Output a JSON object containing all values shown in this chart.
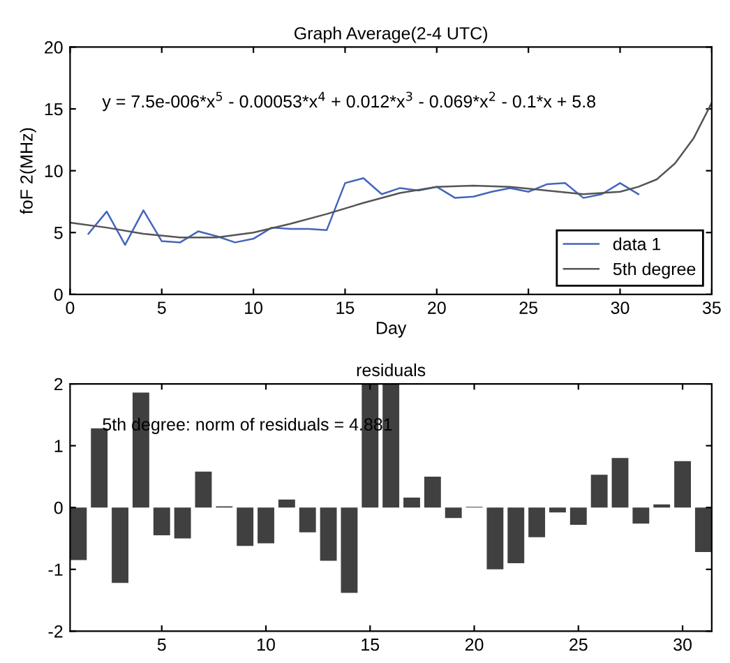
{
  "chart_data": [
    {
      "type": "line",
      "title": "Graph Average(2-4 UTC)",
      "xlabel": "Day",
      "ylabel": "foF 2(MHz)",
      "xlim": [
        0,
        35
      ],
      "ylim": [
        0,
        20
      ],
      "xticks": [
        0,
        5,
        10,
        15,
        20,
        25,
        30,
        35
      ],
      "yticks": [
        0,
        5,
        10,
        15,
        20
      ],
      "legend": "bottom right",
      "grid": false,
      "annotations": [
        "y = 7.5e-006*x$^{5}$ - 0.00053*x$^{4}$ + 0.012*x$^{3}$ - 0.069*x$^{2}$ - 0.1*x + 5.8"
      ],
      "series": [
        {
          "name": "data 1",
          "color": "#4466bb",
          "x": [
            1,
            2,
            3,
            4,
            5,
            6,
            7,
            8,
            9,
            10,
            11,
            12,
            13,
            14,
            15,
            16,
            17,
            18,
            19,
            20,
            21,
            22,
            23,
            24,
            25,
            26,
            27,
            28,
            29,
            30,
            31
          ],
          "values": [
            4.9,
            6.7,
            4.0,
            6.8,
            4.3,
            4.2,
            5.1,
            4.7,
            4.2,
            4.5,
            5.4,
            5.3,
            5.3,
            5.2,
            9.0,
            9.4,
            8.1,
            8.6,
            8.4,
            8.7,
            7.8,
            7.9,
            8.3,
            8.6,
            8.3,
            8.9,
            9.0,
            7.8,
            8.1,
            9.0,
            8.1
          ]
        },
        {
          "name": "5th degree",
          "color": "#555555",
          "x": [
            0,
            2,
            4,
            6,
            8,
            10,
            12,
            14,
            16,
            18,
            20,
            22,
            24,
            26,
            28,
            30,
            31,
            32,
            33,
            34,
            35
          ],
          "values": [
            5.8,
            5.4,
            4.9,
            4.6,
            4.6,
            5.0,
            5.7,
            6.5,
            7.4,
            8.2,
            8.7,
            8.8,
            8.7,
            8.4,
            8.1,
            8.3,
            8.7,
            9.3,
            10.6,
            12.6,
            15.5
          ]
        }
      ]
    },
    {
      "type": "bar",
      "title": "residuals",
      "xlim": [
        0.6,
        31.4
      ],
      "ylim": [
        -2,
        2
      ],
      "xticks": [
        5,
        10,
        15,
        20,
        25,
        30
      ],
      "yticks": [
        -2,
        -1,
        0,
        1,
        2
      ],
      "grid": false,
      "annotations": [
        "5th degree: norm of residuals = 4.881"
      ],
      "x": [
        1,
        2,
        3,
        4,
        5,
        6,
        7,
        8,
        9,
        10,
        11,
        12,
        13,
        14,
        15,
        16,
        17,
        18,
        19,
        20,
        21,
        22,
        23,
        24,
        25,
        26,
        27,
        28,
        29,
        30,
        31
      ],
      "series": [
        {
          "color": "#404040",
          "values": [
            -0.85,
            1.28,
            -1.22,
            1.86,
            -0.45,
            -0.5,
            0.58,
            0.02,
            -0.62,
            -0.58,
            0.13,
            -0.4,
            -0.86,
            -1.38,
            2,
            2,
            0.16,
            0.5,
            -0.17,
            0.01,
            -1.0,
            -0.9,
            -0.48,
            -0.08,
            -0.28,
            0.53,
            0.8,
            -0.26,
            0.05,
            0.75,
            -0.72
          ]
        }
      ]
    }
  ]
}
